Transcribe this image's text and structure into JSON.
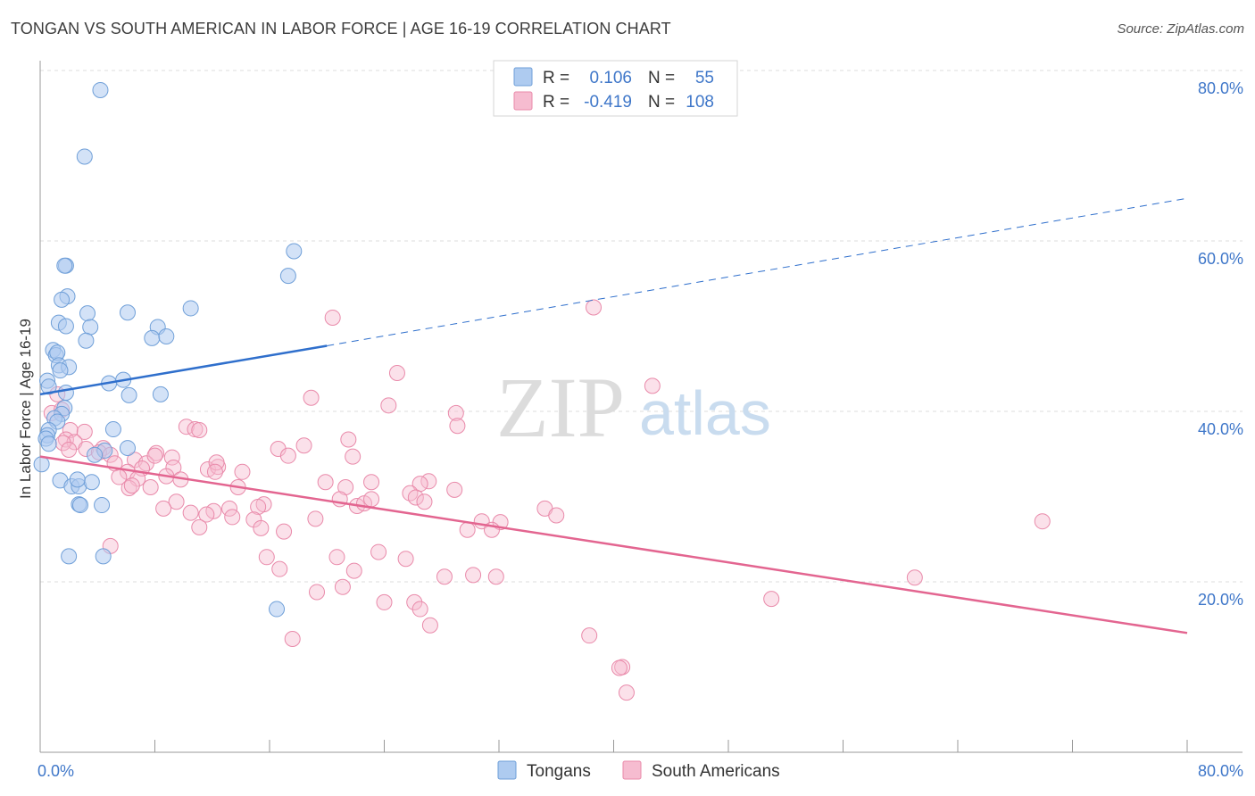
{
  "header": {
    "title": "TONGAN VS SOUTH AMERICAN IN LABOR FORCE | AGE 16-19 CORRELATION CHART",
    "source": "Source: ZipAtlas.com"
  },
  "watermark": {
    "zip": "ZIP",
    "atlas": "atlas"
  },
  "colors": {
    "tongans_fill": "#aecbf0",
    "tongans_stroke": "#6f9fd8",
    "tongans_line": "#2f6fcc",
    "south_fill": "#f6bcd0",
    "south_stroke": "#e98aaa",
    "south_line": "#e36590",
    "tick_text": "#3f77c9",
    "grid": "#dddddd"
  },
  "legend": {
    "rows": [
      {
        "r_label": "R =",
        "r_value": "0.106",
        "n_label": "N =",
        "n_value": "55"
      },
      {
        "r_label": "R =",
        "r_value": "-0.419",
        "n_label": "N =",
        "n_value": "108"
      }
    ]
  },
  "bottom_legend": [
    "Tongans",
    "South Americans"
  ],
  "chart_data": {
    "type": "scatter",
    "title": "TONGAN VS SOUTH AMERICAN IN LABOR FORCE | AGE 16-19 CORRELATION CHART",
    "xlabel": "",
    "ylabel": "In Labor Force | Age 16-19",
    "xlim": [
      0,
      80
    ],
    "ylim": [
      0,
      80
    ],
    "x_tick_labels": [
      "0.0%",
      "80.0%"
    ],
    "y_tick_labels": [
      "20.0%",
      "40.0%",
      "60.0%",
      "80.0%"
    ],
    "y_ticks": [
      20,
      40,
      60,
      80
    ],
    "grid": true,
    "legend_position": "top-center",
    "series": [
      {
        "name": "Tongans",
        "r": 0.106,
        "n": 55,
        "trend": {
          "x_start": 0,
          "y_start": 42.0,
          "x_solid_end": 20,
          "y_solid_end": 47.7,
          "x_end": 80,
          "y_end": 65.0
        },
        "points": [
          [
            4.2,
            77.7
          ],
          [
            3.1,
            69.9
          ],
          [
            1.8,
            57.1
          ],
          [
            1.7,
            57.1
          ],
          [
            17.7,
            58.8
          ],
          [
            17.3,
            55.9
          ],
          [
            1.9,
            53.5
          ],
          [
            1.5,
            53.1
          ],
          [
            3.3,
            51.5
          ],
          [
            6.1,
            51.6
          ],
          [
            10.5,
            52.1
          ],
          [
            1.3,
            50.4
          ],
          [
            1.8,
            50.0
          ],
          [
            3.5,
            49.9
          ],
          [
            8.2,
            49.9
          ],
          [
            3.2,
            48.3
          ],
          [
            7.8,
            48.6
          ],
          [
            8.8,
            48.8
          ],
          [
            0.9,
            47.2
          ],
          [
            1.1,
            46.6
          ],
          [
            1.2,
            46.9
          ],
          [
            1.3,
            45.4
          ],
          [
            2.0,
            45.2
          ],
          [
            1.4,
            44.8
          ],
          [
            0.5,
            43.6
          ],
          [
            4.8,
            43.3
          ],
          [
            5.8,
            43.7
          ],
          [
            0.6,
            42.9
          ],
          [
            1.8,
            42.2
          ],
          [
            6.2,
            41.9
          ],
          [
            8.4,
            42.0
          ],
          [
            1.7,
            40.4
          ],
          [
            1.5,
            39.7
          ],
          [
            1.0,
            39.2
          ],
          [
            1.2,
            38.8
          ],
          [
            0.6,
            37.8
          ],
          [
            5.1,
            37.9
          ],
          [
            0.5,
            37.2
          ],
          [
            0.4,
            36.8
          ],
          [
            0.6,
            36.2
          ],
          [
            6.1,
            35.7
          ],
          [
            4.5,
            35.4
          ],
          [
            3.8,
            34.9
          ],
          [
            0.1,
            33.8
          ],
          [
            1.4,
            31.9
          ],
          [
            2.2,
            31.2
          ],
          [
            2.7,
            31.2
          ],
          [
            3.6,
            31.7
          ],
          [
            2.7,
            29.1
          ],
          [
            2.8,
            29.0
          ],
          [
            4.3,
            29.0
          ],
          [
            2.0,
            23.0
          ],
          [
            4.4,
            23.0
          ],
          [
            16.5,
            16.8
          ],
          [
            2.6,
            32.0
          ]
        ]
      },
      {
        "name": "South Americans",
        "r": -0.419,
        "n": 108,
        "trend": {
          "x_start": 0,
          "y_start": 34.7,
          "x_end": 80,
          "y_end": 14.0
        },
        "points": [
          [
            38.6,
            52.2
          ],
          [
            20.4,
            51.0
          ],
          [
            24.9,
            44.5
          ],
          [
            42.7,
            43.0
          ],
          [
            18.9,
            41.6
          ],
          [
            24.3,
            40.7
          ],
          [
            29.0,
            39.8
          ],
          [
            29.1,
            38.3
          ],
          [
            10.2,
            38.2
          ],
          [
            10.8,
            37.9
          ],
          [
            0.8,
            39.8
          ],
          [
            1.5,
            40.2
          ],
          [
            2.1,
            37.8
          ],
          [
            3.1,
            37.6
          ],
          [
            1.8,
            36.7
          ],
          [
            2.4,
            36.4
          ],
          [
            1.6,
            36.3
          ],
          [
            2.0,
            35.5
          ],
          [
            3.2,
            35.6
          ],
          [
            4.4,
            35.7
          ],
          [
            4.1,
            35.2
          ],
          [
            4.9,
            34.9
          ],
          [
            8.1,
            35.1
          ],
          [
            11.1,
            37.8
          ],
          [
            21.5,
            36.7
          ],
          [
            18.4,
            36.0
          ],
          [
            16.6,
            35.6
          ],
          [
            17.3,
            34.8
          ],
          [
            21.8,
            34.7
          ],
          [
            9.2,
            34.6
          ],
          [
            6.6,
            34.3
          ],
          [
            7.4,
            33.9
          ],
          [
            8.0,
            34.8
          ],
          [
            5.2,
            33.9
          ],
          [
            7.1,
            33.3
          ],
          [
            9.3,
            33.4
          ],
          [
            11.7,
            33.2
          ],
          [
            12.4,
            33.5
          ],
          [
            12.3,
            34.0
          ],
          [
            14.1,
            32.9
          ],
          [
            6.1,
            32.9
          ],
          [
            5.5,
            32.3
          ],
          [
            6.8,
            32.1
          ],
          [
            8.8,
            32.4
          ],
          [
            9.8,
            32.0
          ],
          [
            12.2,
            32.9
          ],
          [
            6.2,
            31.0
          ],
          [
            6.4,
            31.3
          ],
          [
            7.7,
            31.1
          ],
          [
            13.8,
            31.1
          ],
          [
            19.9,
            31.7
          ],
          [
            21.3,
            31.1
          ],
          [
            23.1,
            31.7
          ],
          [
            27.1,
            31.8
          ],
          [
            26.5,
            31.5
          ],
          [
            28.9,
            30.8
          ],
          [
            25.8,
            30.4
          ],
          [
            26.2,
            29.9
          ],
          [
            20.9,
            29.7
          ],
          [
            9.5,
            29.4
          ],
          [
            15.6,
            29.1
          ],
          [
            8.6,
            28.6
          ],
          [
            12.1,
            28.3
          ],
          [
            13.2,
            28.6
          ],
          [
            10.5,
            28.1
          ],
          [
            11.6,
            27.9
          ],
          [
            15.2,
            28.8
          ],
          [
            13.4,
            27.6
          ],
          [
            14.9,
            27.3
          ],
          [
            22.1,
            28.9
          ],
          [
            22.6,
            29.2
          ],
          [
            23.1,
            29.7
          ],
          [
            26.8,
            29.4
          ],
          [
            35.2,
            28.6
          ],
          [
            36.0,
            27.8
          ],
          [
            30.8,
            27.1
          ],
          [
            32.1,
            27.0
          ],
          [
            19.2,
            27.4
          ],
          [
            11.1,
            26.4
          ],
          [
            15.4,
            26.3
          ],
          [
            17.0,
            25.9
          ],
          [
            29.8,
            26.1
          ],
          [
            31.5,
            26.1
          ],
          [
            69.9,
            27.1
          ],
          [
            4.9,
            24.2
          ],
          [
            15.8,
            22.9
          ],
          [
            20.7,
            22.9
          ],
          [
            23.6,
            23.5
          ],
          [
            25.5,
            22.7
          ],
          [
            16.7,
            21.5
          ],
          [
            21.9,
            21.3
          ],
          [
            28.2,
            20.6
          ],
          [
            30.2,
            20.8
          ],
          [
            31.8,
            20.6
          ],
          [
            61.0,
            20.5
          ],
          [
            21.1,
            19.4
          ],
          [
            19.3,
            18.8
          ],
          [
            24.0,
            17.6
          ],
          [
            26.1,
            17.6
          ],
          [
            26.5,
            16.8
          ],
          [
            51.0,
            18.0
          ],
          [
            27.2,
            14.9
          ],
          [
            17.6,
            13.3
          ],
          [
            38.3,
            13.7
          ],
          [
            40.6,
            10.0
          ],
          [
            40.4,
            9.9
          ],
          [
            40.9,
            7.0
          ],
          [
            1.2,
            42.0
          ]
        ]
      }
    ]
  }
}
